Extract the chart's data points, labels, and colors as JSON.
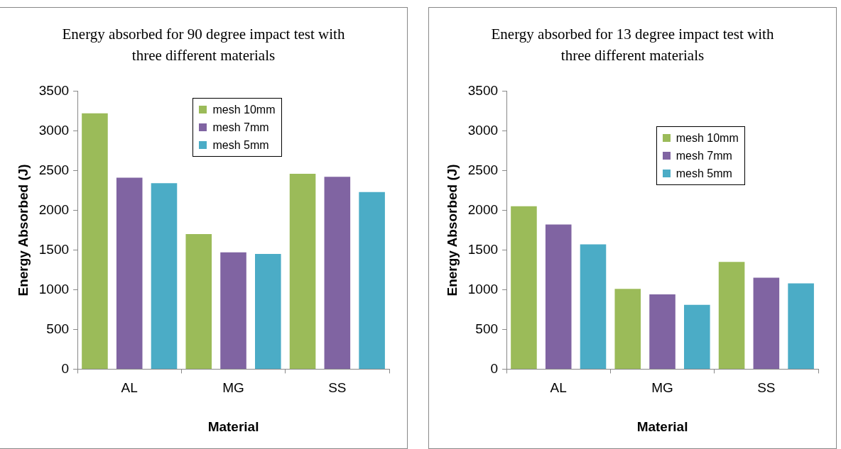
{
  "chart_data": [
    {
      "type": "bar",
      "title": "Energy absorbed for 90 degree impact test with three different materials",
      "xlabel": "Material",
      "ylabel": "Energy Absorbed (J)",
      "categories": [
        "AL",
        "MG",
        "SS"
      ],
      "series": [
        {
          "name": "mesh 10mm",
          "color": "#9bbb59",
          "values": [
            3220,
            1700,
            2460
          ]
        },
        {
          "name": "mesh 7mm",
          "color": "#8064a2",
          "values": [
            2410,
            1470,
            2420
          ]
        },
        {
          "name": "mesh 5mm",
          "color": "#4bacc6",
          "values": [
            2340,
            1450,
            2230
          ]
        }
      ],
      "ylim": [
        0,
        3500
      ],
      "yticks": [
        0,
        500,
        1000,
        1500,
        2000,
        2500,
        3000,
        3500
      ],
      "grid": false,
      "legend": "top right"
    },
    {
      "type": "bar",
      "title": "Energy absorbed for 13 degree impact test with three different materials",
      "xlabel": "Material",
      "ylabel": "Energy Absorbed (J)",
      "categories": [
        "AL",
        "MG",
        "SS"
      ],
      "series": [
        {
          "name": "mesh 10mm",
          "color": "#9bbb59",
          "values": [
            2050,
            1010,
            1350
          ]
        },
        {
          "name": "mesh 7mm",
          "color": "#8064a2",
          "values": [
            1820,
            940,
            1150
          ]
        },
        {
          "name": "mesh 5mm",
          "color": "#4bacc6",
          "values": [
            1570,
            810,
            1080
          ]
        }
      ],
      "ylim": [
        0,
        3500
      ],
      "yticks": [
        0,
        500,
        1000,
        1500,
        2000,
        2500,
        3000,
        3500
      ],
      "grid": false,
      "legend": "top right"
    }
  ]
}
